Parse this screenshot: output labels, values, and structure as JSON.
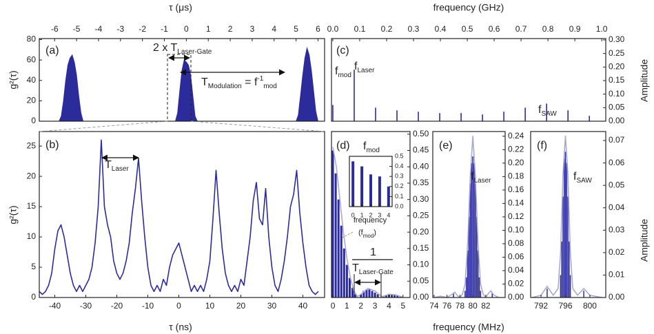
{
  "chart_data": [
    {
      "type": "area",
      "x_axis_position": "top",
      "y_axis_position": "left",
      "xlabel": "τ (μs)",
      "ylabel": "g²(τ)",
      "xlim": [
        -6.7,
        6.3
      ],
      "ylim": [
        0,
        81
      ],
      "xticks": [
        -6,
        -5,
        -4,
        -3,
        -2,
        -1,
        0,
        1,
        2,
        3,
        4,
        5,
        6
      ],
      "yticks": [
        0,
        20,
        40,
        60,
        80
      ],
      "series": [
        {
          "type": "area",
          "color": "#2b2b9b",
          "x": [
            -6.5,
            -5.8,
            -5.7,
            -5.6,
            -5.5,
            -5.4,
            -5.3,
            -5.2,
            -5.1,
            -5.0,
            -4.9,
            -4.8,
            -4.7,
            -0.5,
            -0.4,
            -0.3,
            -0.2,
            -0.1,
            0,
            0.1,
            0.2,
            0.3,
            0.4,
            0.5,
            5.0,
            5.1,
            5.2,
            5.3,
            5.4,
            5.5,
            5.6,
            5.7,
            5.8,
            5.9,
            6.0,
            6.3
          ],
          "values": [
            0,
            0,
            5,
            20,
            40,
            55,
            62,
            65,
            58,
            45,
            25,
            8,
            0,
            0,
            8,
            30,
            50,
            60,
            58,
            55,
            45,
            25,
            5,
            0,
            0,
            6,
            25,
            45,
            62,
            72,
            65,
            50,
            30,
            10,
            0,
            0
          ]
        }
      ],
      "annotations": [
        [
          {
            "text": "(a)"
          }
        ],
        [
          {
            "text": "2 x T"
          },
          {
            "sub": "Laser-Gate"
          }
        ],
        [
          {
            "text": "T"
          },
          {
            "sub": "Modulation"
          },
          {
            "text": " = f"
          },
          {
            "sup": "-1"
          },
          {
            "sub": "mod"
          }
        ]
      ]
    },
    {
      "type": "line",
      "x_axis_position": "bottom",
      "y_axis_position": "left",
      "xlabel": "τ (ns)",
      "ylabel": "g²(τ)",
      "xlim": [
        -45,
        47
      ],
      "ylim": [
        0,
        27.4
      ],
      "xticks": [
        -40,
        -30,
        -20,
        -10,
        0,
        10,
        20,
        30,
        40
      ],
      "yticks": [
        0,
        5,
        10,
        15,
        20,
        25
      ],
      "series": [
        {
          "type": "line",
          "color": "#2b2b9b",
          "x": [
            -45,
            -44,
            -43,
            -42,
            -41,
            -40,
            -39,
            -38,
            -37,
            -36,
            -35,
            -34,
            -33,
            -32,
            -31,
            -30,
            -29,
            -28,
            -27,
            -26,
            -25,
            -24,
            -23,
            -22,
            -21,
            -20,
            -19,
            -18,
            -17,
            -16,
            -15,
            -14,
            -13,
            -12,
            -11,
            -10,
            -9,
            -8,
            -7,
            -6,
            -5,
            -4,
            -3,
            -2,
            -1,
            0,
            1,
            2,
            3,
            4,
            5,
            6,
            7,
            8,
            9,
            10,
            11,
            12,
            13,
            14,
            15,
            16,
            17,
            18,
            19,
            20,
            21,
            22,
            23,
            24,
            25,
            26,
            27,
            28,
            29,
            30,
            31,
            32,
            33,
            34,
            35,
            36,
            37,
            38,
            39,
            40,
            41,
            42,
            43,
            44,
            45
          ],
          "values": [
            1,
            0.5,
            1,
            2,
            4,
            8,
            11,
            12,
            10,
            7,
            4,
            2,
            1,
            2,
            1,
            2,
            3,
            5,
            9,
            15,
            26,
            15,
            12,
            10,
            6,
            4,
            3,
            4,
            6,
            9,
            14,
            18,
            23,
            16,
            10,
            5,
            2,
            1,
            2,
            1,
            3,
            2,
            5,
            7,
            8,
            9,
            7,
            5,
            3,
            1,
            2,
            1,
            2,
            1,
            3,
            6,
            13,
            21,
            14,
            8,
            4,
            2,
            1,
            2,
            1,
            3,
            2,
            6,
            10,
            16,
            19,
            13,
            12,
            18,
            10,
            5,
            2,
            1,
            3,
            6,
            10,
            15,
            17,
            21,
            14,
            9,
            5,
            2,
            1,
            0.5,
            1
          ]
        }
      ],
      "annotations": [
        [
          {
            "text": "(b)"
          }
        ],
        [
          {
            "text": "T"
          },
          {
            "sub": "Laser"
          }
        ]
      ]
    },
    {
      "type": "bar",
      "x_axis_position": "top",
      "y_axis_position": "right",
      "xlabel": "frequency (GHz)",
      "ylabel": "Amplitude",
      "xlim": [
        -0.005,
        1.015
      ],
      "ylim": [
        0,
        0.305
      ],
      "xticks": [
        {
          "value": 0,
          "label": "0.0"
        },
        0.1,
        0.2,
        0.3,
        0.4,
        0.5,
        0.6,
        0.7,
        0.8,
        0.9,
        {
          "value": 1,
          "label": "1.0"
        }
      ],
      "yticks": [
        {
          "value": 0,
          "label": "0.00"
        },
        0.05,
        {
          "value": 0.1,
          "label": "0.10"
        },
        0.15,
        {
          "value": 0.2,
          "label": "0.20"
        },
        0.25,
        {
          "value": 0.3,
          "label": "0.30"
        }
      ],
      "series": [
        {
          "type": "bar",
          "color": "#2b2b9b",
          "x": [
            0.0,
            0.0795,
            0.159,
            0.2385,
            0.318,
            0.3975,
            0.477,
            0.5565,
            0.636,
            0.7155,
            0.795,
            0.8745,
            0.954
          ],
          "values": [
            0.06,
            0.19,
            0.05,
            0.04,
            0.035,
            0.03,
            0.03,
            0.025,
            0.035,
            0.05,
            0.065,
            0.04,
            0.02
          ]
        }
      ],
      "annotations": [
        [
          {
            "text": "(c)"
          }
        ],
        [
          {
            "text": "f"
          },
          {
            "sub": "mod"
          }
        ],
        [
          {
            "text": "f"
          },
          {
            "sub": "Laser"
          }
        ],
        [
          {
            "text": "f"
          },
          {
            "sub": "SAW"
          }
        ]
      ]
    },
    {
      "type": "bar",
      "x_axis_position": "bottom",
      "y_axis_position": "right",
      "xlabel": "frequency (MHz)",
      "xlim": [
        -0.1,
        5.5
      ],
      "ylim": [
        0,
        0.508
      ],
      "xticks": [
        0,
        1,
        2,
        3,
        4,
        5
      ],
      "yticks": [
        {
          "value": 0,
          "label": "0.00"
        },
        0.05,
        {
          "value": 0.1,
          "label": "0.10"
        },
        0.15,
        {
          "value": 0.2,
          "label": "0.20"
        },
        0.25,
        {
          "value": 0.3,
          "label": "0.30"
        },
        0.35,
        {
          "value": 0.4,
          "label": "0.40"
        },
        0.45,
        {
          "value": 0.5,
          "label": "0.50"
        }
      ],
      "series": [
        {
          "type": "bar",
          "color": "#2b2b9b",
          "x": [
            0,
            0.2,
            0.4,
            0.6,
            0.8,
            1.0,
            1.2,
            1.4,
            1.6,
            1.8,
            2.0,
            2.2,
            2.4,
            2.6,
            2.8,
            3.0,
            3.2,
            3.4,
            3.6,
            3.8,
            4.0,
            4.2,
            4.4,
            4.6,
            4.8,
            5.0
          ],
          "values": [
            0.45,
            0.38,
            0.3,
            0.22,
            0.15,
            0.1,
            0.06,
            0.03,
            0.01,
            0,
            0.01,
            0.02,
            0.025,
            0.025,
            0.02,
            0.015,
            0.01,
            0,
            0.005,
            0.008,
            0.01,
            0.01,
            0.008,
            0.005,
            0.002,
            0
          ]
        },
        {
          "type": "line",
          "color": "#a9a9cf",
          "x": [
            0,
            0.25,
            0.5,
            0.75,
            1.0,
            1.25,
            1.5,
            1.75,
            2.0,
            2.5,
            3.0,
            3.5,
            4.0,
            4.5,
            5.0
          ],
          "values": [
            0.46,
            0.4,
            0.3,
            0.2,
            0.12,
            0.06,
            0.02,
            0.003,
            0.01,
            0.028,
            0.02,
            0.002,
            0.01,
            0.008,
            0.001
          ]
        }
      ],
      "annotations": [
        [
          {
            "text": "(d)"
          }
        ],
        [
          {
            "text": "f"
          },
          {
            "sub": "mod"
          }
        ],
        [
          {
            "text": "1"
          }
        ],
        [
          {
            "text": "T"
          },
          {
            "sub": "Laser-Gate"
          }
        ]
      ]
    },
    {
      "type": "bar",
      "x_axis_position": "bottom",
      "y_axis_position": "right",
      "xlabel": "frequency",
      "xlim": [
        -0.4,
        4.4
      ],
      "ylim": [
        0,
        0.5
      ],
      "xticks": [
        0,
        1,
        2,
        3,
        4
      ],
      "yticks": [
        {
          "value": 0,
          "label": "0.0"
        },
        0.1,
        0.2,
        0.3,
        0.4,
        0.5
      ],
      "series": [
        {
          "type": "bar",
          "color": "#2b2b9b",
          "x": [
            0,
            1,
            2,
            3,
            4
          ],
          "values": [
            0.45,
            0.4,
            0.32,
            0.3,
            0.2
          ]
        }
      ],
      "annotations": [
        [
          {
            "text": "(f"
          },
          {
            "sub": "mod"
          },
          {
            "text": ")"
          }
        ]
      ]
    },
    {
      "type": "bar",
      "x_axis_position": "bottom",
      "y_axis_position": "right",
      "xlim": [
        73.8,
        85
      ],
      "ylim": [
        0,
        0.247
      ],
      "xticks": [
        74,
        76,
        78,
        80,
        82
      ],
      "yticks": [
        {
          "value": 0,
          "label": "0.00"
        },
        0.02,
        0.04,
        0.06,
        0.08,
        {
          "value": 0.1,
          "label": "0.10"
        },
        0.12,
        0.14,
        0.16,
        0.18,
        {
          "value": 0.2,
          "label": "0.20"
        },
        0.22,
        0.24
      ],
      "series": [
        {
          "type": "bar",
          "color": "#2b2b9b",
          "x": [
            77,
            78.8,
            79.0,
            79.2,
            79.4,
            79.6,
            79.8,
            80.0,
            80.2,
            80.4,
            80.6,
            80.8,
            81.0,
            81.2,
            83
          ],
          "values": [
            0.006,
            0.01,
            0.03,
            0.07,
            0.12,
            0.17,
            0.2,
            0.21,
            0.2,
            0.17,
            0.12,
            0.07,
            0.03,
            0.01,
            0.007
          ]
        },
        {
          "type": "line",
          "color": "#a9a9cf",
          "x": [
            74,
            75,
            76,
            76.8,
            77.2,
            77.6,
            78,
            78.4,
            78.8,
            79.2,
            79.6,
            80,
            80.4,
            80.8,
            81.2,
            81.6,
            82,
            82.4,
            82.8,
            83.2,
            84
          ],
          "values": [
            0,
            0.002,
            0,
            0.005,
            0.008,
            0.003,
            0,
            0.005,
            0.02,
            0.08,
            0.18,
            0.24,
            0.18,
            0.08,
            0.02,
            0.005,
            0,
            0.006,
            0.01,
            0.004,
            0
          ]
        }
      ],
      "annotations": [
        [
          {
            "text": "(e)"
          }
        ],
        [
          {
            "text": "f"
          },
          {
            "sub": "Laser"
          }
        ]
      ]
    },
    {
      "type": "bar",
      "x_axis_position": "bottom",
      "y_axis_position": "right",
      "ylabel": "Amplitude",
      "xlim": [
        790.3,
        802.6
      ],
      "ylim": [
        0,
        0.074
      ],
      "xticks": [
        792,
        796,
        800
      ],
      "yticks": [
        {
          "value": 0,
          "label": "0.00"
        },
        0.01,
        0.02,
        0.03,
        0.04,
        0.05,
        0.06,
        0.07
      ],
      "series": [
        {
          "type": "bar",
          "color": "#2b2b9b",
          "x": [
            793,
            795.2,
            795.4,
            795.6,
            795.8,
            796.0,
            796.2,
            796.4,
            796.6,
            796.8,
            799
          ],
          "values": [
            0.004,
            0.01,
            0.025,
            0.045,
            0.062,
            0.065,
            0.06,
            0.045,
            0.025,
            0.01,
            0.003
          ]
        },
        {
          "type": "line",
          "color": "#a9a9cf",
          "x": [
            790.5,
            792,
            793,
            794,
            794.8,
            795.2,
            795.6,
            796,
            796.4,
            796.8,
            797.2,
            798,
            799,
            800,
            802
          ],
          "values": [
            0,
            0.001,
            0.005,
            0.001,
            0.004,
            0.02,
            0.055,
            0.072,
            0.055,
            0.02,
            0.004,
            0.001,
            0.004,
            0.001,
            0
          ]
        }
      ],
      "annotations": [
        [
          {
            "text": "(f)"
          }
        ],
        [
          {
            "text": "f"
          },
          {
            "sub": "SAW"
          }
        ]
      ]
    }
  ]
}
